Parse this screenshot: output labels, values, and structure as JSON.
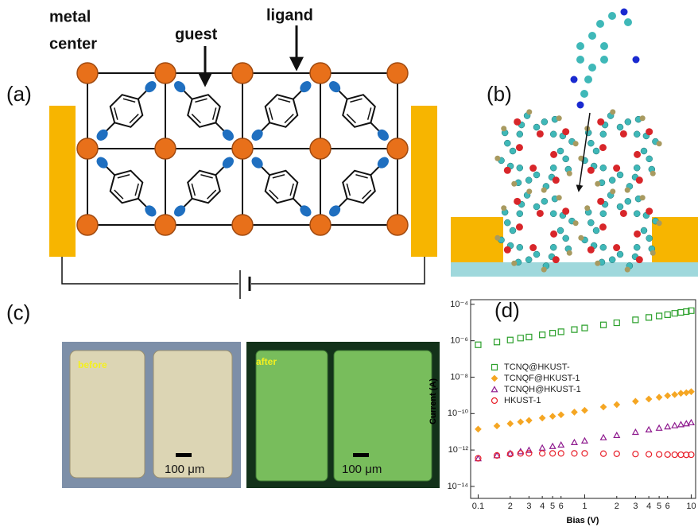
{
  "panel_a": {
    "label": "(a)",
    "metal_label": [
      "metal",
      "center"
    ],
    "guest_label": "guest",
    "ligand_label": "ligand"
  },
  "panel_b": {
    "label": "(b)"
  },
  "panel_c": {
    "label": "(c)",
    "before": {
      "caption": "before",
      "scale": "100 μm"
    },
    "after": {
      "caption": "after",
      "scale": "100 μm"
    }
  },
  "chart_data": {
    "type": "scatter",
    "label": "(d)",
    "xlabel": "Bias (V)",
    "ylabel": "Current (A)",
    "log_x": true,
    "log_y": true,
    "xlim": [
      0.085,
      11
    ],
    "ylim": [
      2.2e-15,
      0.00018
    ],
    "xticks": [
      0.1,
      {
        "value": 0.2,
        "label": "2"
      },
      {
        "value": 0.3,
        "label": "3"
      },
      {
        "value": 0.4,
        "label": "4"
      },
      {
        "value": 0.5,
        "label": "5"
      },
      {
        "value": 0.6,
        "label": "6"
      },
      1,
      {
        "value": 2,
        "label": "2"
      },
      {
        "value": 3,
        "label": "3"
      },
      {
        "value": 4,
        "label": "4"
      },
      {
        "value": 5,
        "label": "5"
      },
      {
        "value": 6,
        "label": "6"
      },
      10
    ],
    "yticks": [
      {
        "value": 0.0001,
        "label": "10⁻⁴"
      },
      {
        "value": 1e-06,
        "label": "10⁻⁶"
      },
      {
        "value": 1e-08,
        "label": "10⁻⁸"
      },
      {
        "value": 1e-10,
        "label": "10⁻¹⁰"
      },
      {
        "value": 1e-12,
        "label": "10⁻¹²"
      },
      {
        "value": 1e-14,
        "label": "10⁻¹⁴"
      }
    ],
    "legend": "upper left",
    "x": [
      0.1,
      0.15,
      0.2,
      0.25,
      0.3,
      0.4,
      0.5,
      0.6,
      0.8,
      1,
      1.5,
      2,
      3,
      4,
      5,
      6,
      7,
      8,
      9,
      10
    ],
    "series": [
      {
        "name": "TCNQ@HKUST-",
        "color": "#2ca02c",
        "marker": "square",
        "values": [
          6e-07,
          8.5e-07,
          1.1e-06,
          1.4e-06,
          1.6e-06,
          2.1e-06,
          2.6e-06,
          3.1e-06,
          4.1e-06,
          5e-06,
          7.4e-06,
          9.7e-06,
          1.4e-05,
          1.9e-05,
          2.3e-05,
          2.7e-05,
          3.2e-05,
          3.6e-05,
          4e-05,
          4.5e-05
        ]
      },
      {
        "name": "TCNQF@HKUST-1",
        "color": "#f5a623",
        "marker": "diamond",
        "values": [
          1.4e-11,
          2.1e-11,
          2.8e-11,
          3.5e-11,
          4.2e-11,
          5.7e-11,
          7.1e-11,
          8.6e-11,
          1.2e-10,
          1.5e-10,
          2.3e-10,
          3.1e-10,
          4.7e-10,
          6.3e-10,
          7.9e-10,
          9.6e-10,
          1.1e-09,
          1.3e-09,
          1.4e-09,
          1.6e-09
        ]
      },
      {
        "name": "TCNQH@HKUST-1",
        "color": "#8e1a8e",
        "marker": "triangle",
        "values": [
          3.4e-13,
          5e-13,
          6.6e-13,
          8.2e-13,
          9.8e-13,
          1.3e-12,
          1.6e-12,
          1.9e-12,
          2.6e-12,
          3.2e-12,
          4.8e-12,
          6.4e-12,
          9.5e-12,
          1.3e-11,
          1.6e-11,
          1.9e-11,
          2.2e-11,
          2.5e-11,
          2.8e-11,
          3.2e-11
        ]
      },
      {
        "name": "HKUST-1",
        "color": "#e8202a",
        "marker": "circle",
        "values": [
          3.5e-13,
          5e-13,
          6e-13,
          6.5e-13,
          6.5e-13,
          6.5e-13,
          6.5e-13,
          6.5e-13,
          6.5e-13,
          6.5e-13,
          6.3e-13,
          6.2e-13,
          6e-13,
          5.8e-13,
          5.7e-13,
          5.6e-13,
          5.5e-13,
          5.5e-13,
          5.4e-13,
          5.5e-13
        ]
      }
    ]
  }
}
